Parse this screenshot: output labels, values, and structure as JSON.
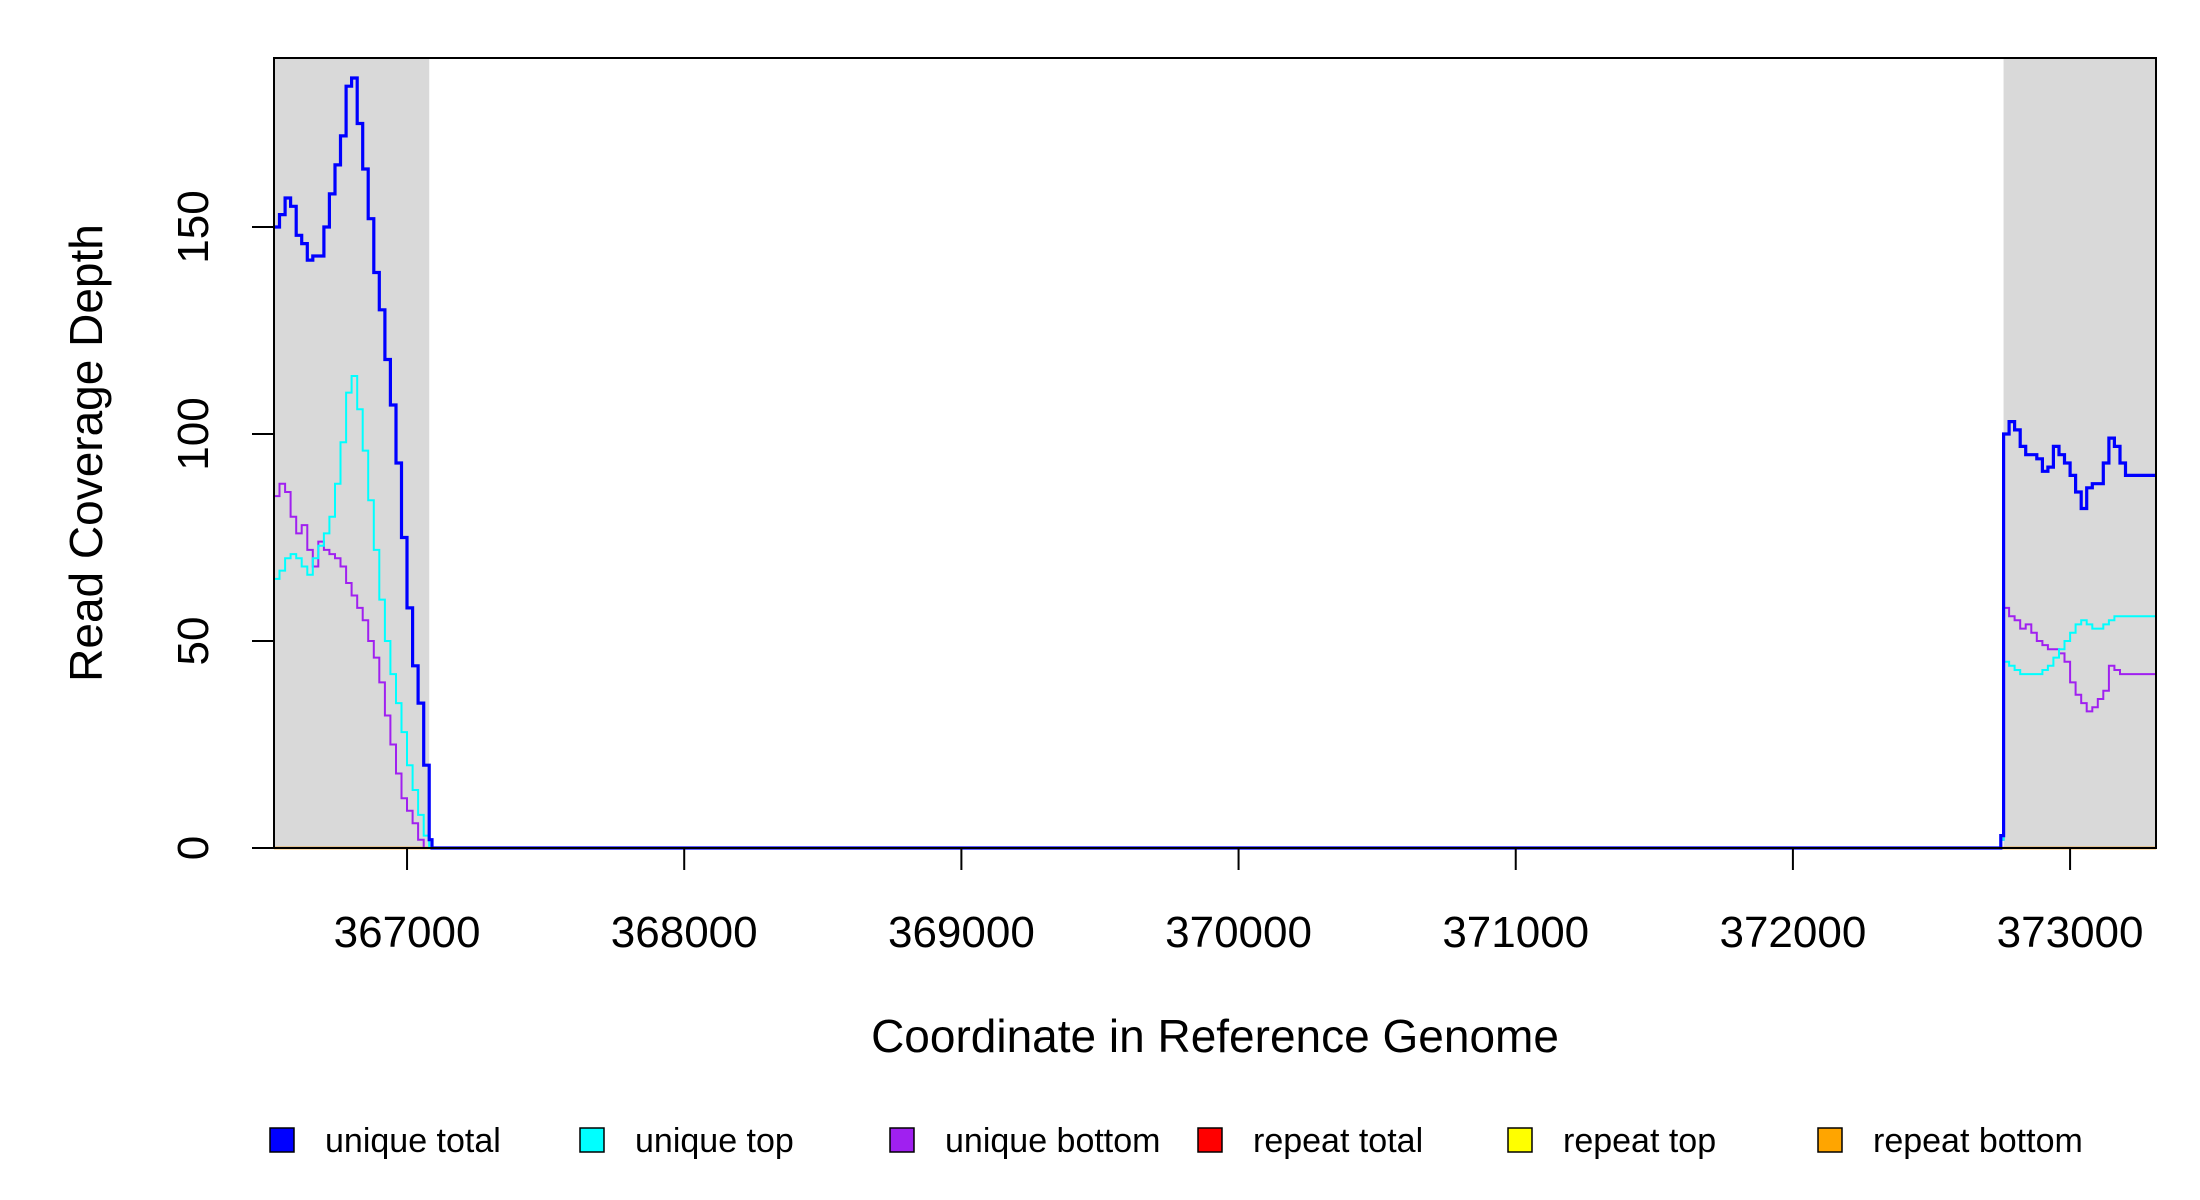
{
  "chart_data": {
    "type": "line",
    "title": "",
    "xlabel": "Coordinate in Reference Genome",
    "ylabel": "Read Coverage Depth",
    "xlim": [
      366520,
      373310
    ],
    "ylim": [
      0,
      190
    ],
    "x_ticks": [
      367000,
      368000,
      369000,
      370000,
      371000,
      372000,
      373000
    ],
    "y_ticks": [
      0,
      50,
      100,
      150
    ],
    "grid": false,
    "shaded_regions": [
      {
        "from": 366520,
        "to": 367080,
        "color": "#d9d9d9"
      },
      {
        "from": 372760,
        "to": 373310,
        "color": "#d9d9d9"
      }
    ],
    "legend_position": "bottom",
    "series": [
      {
        "name": "unique total",
        "color": "#0000ff",
        "x": [
          366520,
          366540,
          366560,
          366580,
          366600,
          366620,
          366640,
          366660,
          366680,
          366700,
          366720,
          366740,
          366760,
          366780,
          366800,
          366820,
          366840,
          366860,
          366880,
          366900,
          366920,
          366940,
          366960,
          366980,
          367000,
          367020,
          367040,
          367060,
          367080,
          367090,
          367100,
          372740,
          372750,
          372760,
          372780,
          372800,
          372820,
          372840,
          372860,
          372880,
          372900,
          372920,
          372940,
          372960,
          372980,
          373000,
          373020,
          373040,
          373060,
          373080,
          373100,
          373120,
          373140,
          373160,
          373180,
          373200,
          373220,
          373240,
          373260,
          373280,
          373300,
          373310
        ],
        "values": [
          150,
          153,
          157,
          155,
          148,
          146,
          142,
          143,
          143,
          150,
          158,
          165,
          172,
          184,
          186,
          175,
          164,
          152,
          139,
          130,
          118,
          107,
          93,
          75,
          58,
          44,
          35,
          20,
          2,
          0,
          0,
          0,
          3,
          100,
          103,
          101,
          97,
          95,
          95,
          94,
          91,
          92,
          97,
          95,
          93,
          90,
          86,
          82,
          87,
          88,
          88,
          93,
          99,
          97,
          93,
          90,
          90,
          90,
          90,
          90,
          90,
          90
        ]
      },
      {
        "name": "unique top",
        "color": "#00ffff",
        "x": [
          366520,
          366540,
          366560,
          366580,
          366600,
          366620,
          366640,
          366660,
          366680,
          366700,
          366720,
          366740,
          366760,
          366780,
          366800,
          366820,
          366840,
          366860,
          366880,
          366900,
          366920,
          366940,
          366960,
          366980,
          367000,
          367020,
          367040,
          367060,
          367080,
          367090,
          367100,
          372740,
          372750,
          372760,
          372780,
          372800,
          372820,
          372840,
          372860,
          372880,
          372900,
          372920,
          372940,
          372960,
          372980,
          373000,
          373020,
          373040,
          373060,
          373080,
          373100,
          373120,
          373140,
          373160,
          373180,
          373200,
          373220,
          373240,
          373260,
          373280,
          373300,
          373310
        ],
        "values": [
          65,
          67,
          70,
          71,
          70,
          68,
          66,
          70,
          73,
          76,
          80,
          88,
          98,
          110,
          114,
          106,
          96,
          84,
          72,
          60,
          50,
          42,
          35,
          28,
          20,
          14,
          8,
          3,
          0,
          0,
          0,
          0,
          2,
          45,
          44,
          43,
          42,
          42,
          42,
          42,
          43,
          44,
          46,
          48,
          50,
          52,
          54,
          55,
          54,
          53,
          53,
          54,
          55,
          56,
          56,
          56,
          56,
          56,
          56,
          56,
          56,
          56
        ]
      },
      {
        "name": "unique bottom",
        "color": "#a020f0",
        "x": [
          366520,
          366540,
          366560,
          366580,
          366600,
          366620,
          366640,
          366660,
          366680,
          366700,
          366720,
          366740,
          366760,
          366780,
          366800,
          366820,
          366840,
          366860,
          366880,
          366900,
          366920,
          366940,
          366960,
          366980,
          367000,
          367020,
          367040,
          367060,
          367080,
          367090,
          367100,
          372740,
          372750,
          372760,
          372780,
          372800,
          372820,
          372840,
          372860,
          372880,
          372900,
          372920,
          372940,
          372960,
          372980,
          373000,
          373020,
          373040,
          373060,
          373080,
          373100,
          373120,
          373140,
          373160,
          373180,
          373200,
          373220,
          373240,
          373260,
          373280,
          373300,
          373310
        ],
        "values": [
          85,
          88,
          86,
          80,
          76,
          78,
          72,
          68,
          74,
          72,
          71,
          70,
          68,
          64,
          61,
          58,
          55,
          50,
          46,
          40,
          32,
          25,
          18,
          12,
          9,
          6,
          2,
          0,
          0,
          0,
          0,
          0,
          2,
          58,
          56,
          55,
          53,
          54,
          52,
          50,
          49,
          48,
          48,
          47,
          45,
          40,
          37,
          35,
          33,
          34,
          36,
          38,
          44,
          43,
          42,
          42,
          42,
          42,
          42,
          42,
          42,
          42
        ]
      },
      {
        "name": "repeat total",
        "color": "#ff0000",
        "x": [
          366520,
          373310
        ],
        "values": [
          0,
          0
        ]
      },
      {
        "name": "repeat top",
        "color": "#ffff00",
        "x": [
          366520,
          373310
        ],
        "values": [
          0,
          0
        ]
      },
      {
        "name": "repeat bottom",
        "color": "#ffa500",
        "x": [
          366520,
          373310
        ],
        "values": [
          0,
          0
        ]
      }
    ]
  }
}
